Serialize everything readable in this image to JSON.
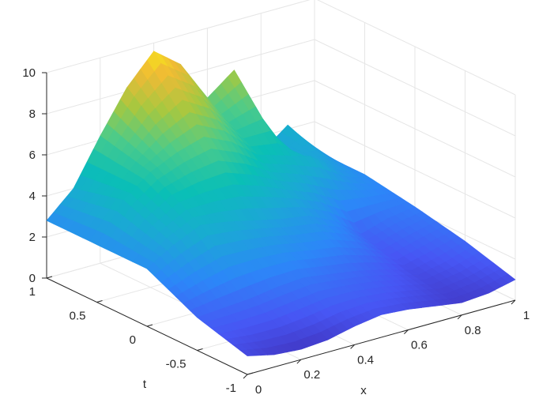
{
  "chart_data": {
    "type": "surface",
    "title": "",
    "xlabel": "x",
    "ylabel": "t",
    "zlabel": "",
    "xlim": [
      0,
      1
    ],
    "ylim": [
      -1,
      1
    ],
    "zlim": [
      0,
      10
    ],
    "x_ticks": [
      "0",
      "0.2",
      "0.4",
      "0.6",
      "0.8",
      "1"
    ],
    "y_ticks": [
      "-1",
      "-0.5",
      "0",
      "0.5",
      "1"
    ],
    "z_ticks": [
      "0",
      "2",
      "4",
      "6",
      "8",
      "10"
    ],
    "grid": true,
    "colormap": "parula",
    "colormap_stops": [
      "#3e26a8",
      "#4756f4",
      "#2c87f8",
      "#1ba8d5",
      "#0abfb6",
      "#4ccb8a",
      "#a6c840",
      "#f0ba35",
      "#f9fb0e"
    ],
    "x": [
      0,
      0.1,
      0.2,
      0.3,
      0.4,
      0.5,
      0.6,
      0.7,
      0.8,
      0.9,
      1.0
    ],
    "t": [
      -1,
      -0.5,
      0,
      0.5,
      1
    ],
    "z": [
      [
        0.9,
        0.6,
        0.5,
        0.6,
        0.9,
        1.1,
        1.0,
        0.8,
        0.6,
        0.7,
        1.0
      ],
      [
        1.6,
        1.7,
        1.8,
        2.0,
        2.1,
        1.9,
        1.7,
        1.4,
        1.0,
        1.3,
        1.7
      ],
      [
        2.8,
        3.6,
        4.2,
        4.0,
        3.7,
        3.4,
        3.2,
        2.6,
        1.6,
        2.0,
        2.2
      ],
      [
        2.8,
        4.6,
        5.6,
        6.2,
        6.6,
        6.0,
        5.0,
        4.6,
        4.2,
        3.2,
        2.6
      ],
      [
        2.8,
        4.0,
        6.2,
        8.2,
        9.6,
        8.6,
        6.6,
        7.6,
        3.2,
        4.2,
        2.6
      ]
    ]
  }
}
